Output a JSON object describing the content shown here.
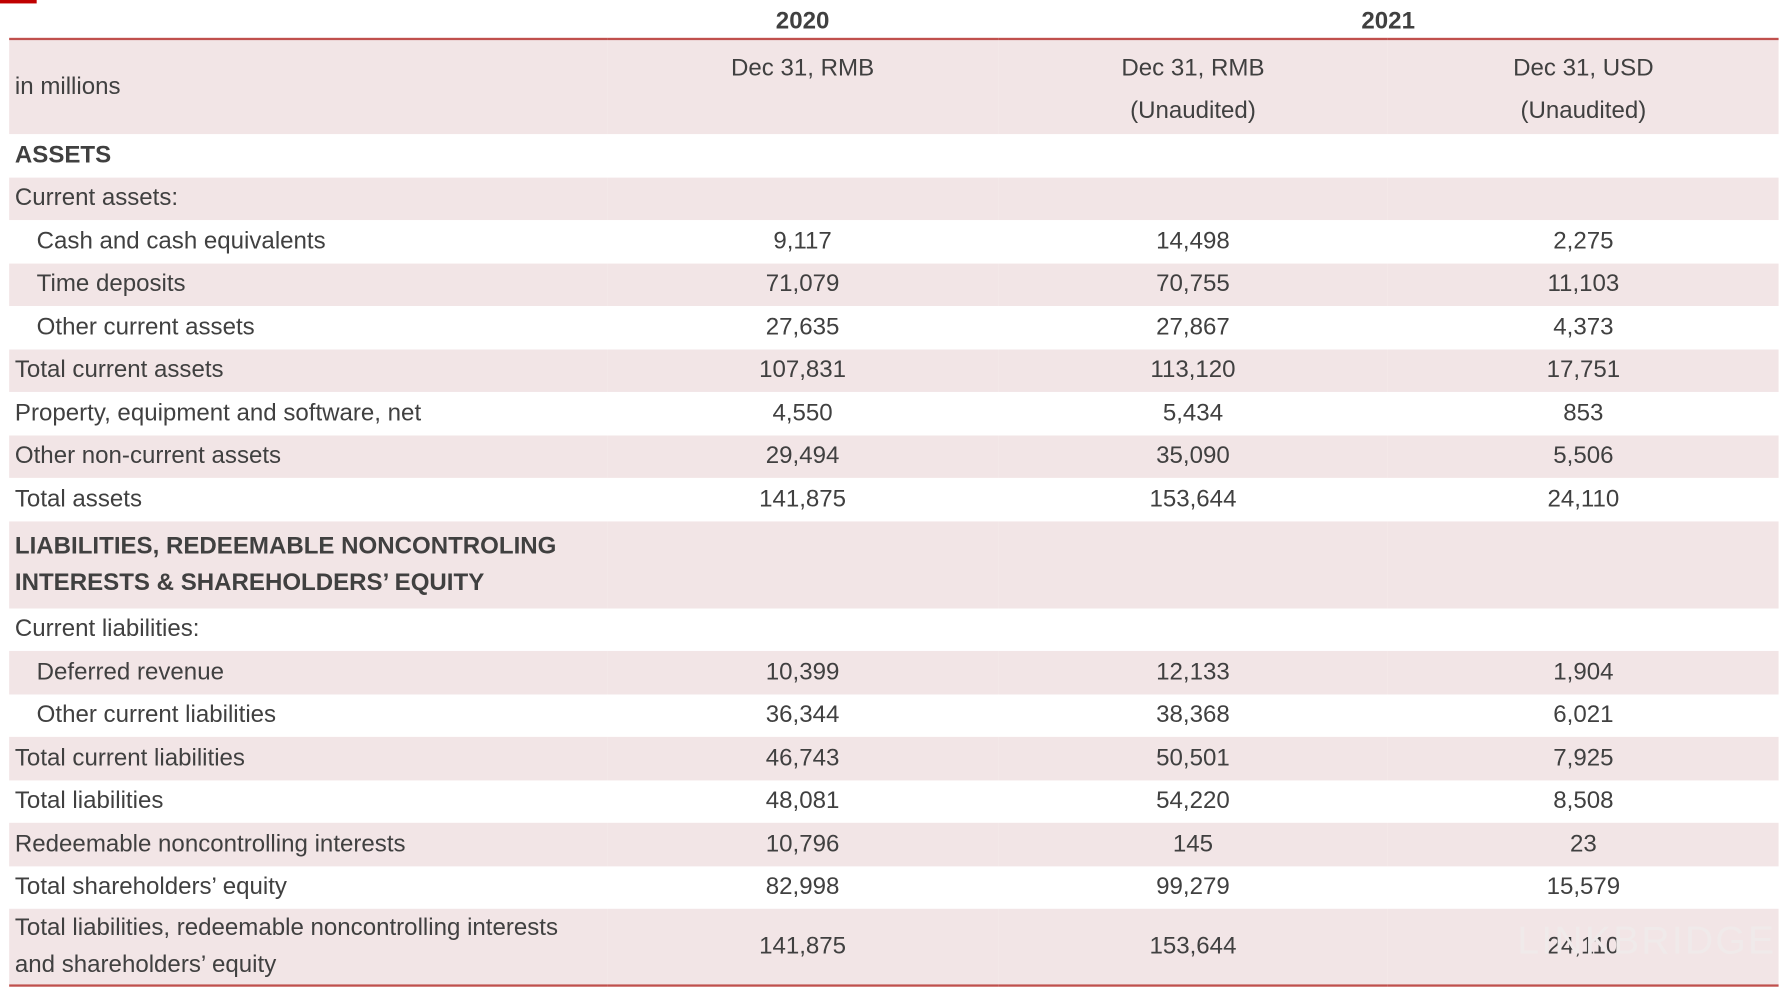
{
  "header": {
    "years": [
      "2020",
      "2021"
    ],
    "unit_label": "in millions",
    "columns": [
      {
        "line1": "Dec 31, RMB"
      },
      {
        "line1": "Dec 31, RMB",
        "line2": "(Unaudited)"
      },
      {
        "line1": "Dec 31, USD",
        "line2": "(Unaudited)"
      }
    ]
  },
  "table": {
    "rows": [
      {
        "label": "ASSETS",
        "bold": true
      },
      {
        "label": "Current assets:"
      },
      {
        "label": "Cash and cash equivalents",
        "indent": true,
        "values": [
          "9,117",
          "14,498",
          "2,275"
        ]
      },
      {
        "label": "Time deposits",
        "indent": true,
        "values": [
          "71,079",
          "70,755",
          "11,103"
        ]
      },
      {
        "label": "Other current assets",
        "indent": true,
        "values": [
          "27,635",
          "27,867",
          "4,373"
        ]
      },
      {
        "label": "Total current assets",
        "values": [
          "107,831",
          "113,120",
          "17,751"
        ]
      },
      {
        "label": "Property, equipment and software, net",
        "values": [
          "4,550",
          "5,434",
          "853"
        ]
      },
      {
        "label": "Other non-current assets",
        "values": [
          "29,494",
          "35,090",
          "5,506"
        ]
      },
      {
        "label": "Total assets",
        "values": [
          "141,875",
          "153,644",
          "24,110"
        ]
      },
      {
        "label": "LIABILITIES, REDEEMABLE NONCONTROLING INTERESTS & SHAREHOLDERS’ EQUITY",
        "bold": true
      },
      {
        "label": "Current liabilities:"
      },
      {
        "label": "Deferred revenue",
        "indent": true,
        "values": [
          "10,399",
          "12,133",
          "1,904"
        ]
      },
      {
        "label": "Other current liabilities",
        "indent": true,
        "values": [
          "36,344",
          "38,368",
          "6,021"
        ]
      },
      {
        "label": "Total current liabilities",
        "values": [
          "46,743",
          "50,501",
          "7,925"
        ]
      },
      {
        "label": "Total liabilities",
        "values": [
          "48,081",
          "54,220",
          "8,508"
        ]
      },
      {
        "label": "Redeemable noncontrolling interests",
        "values": [
          "10,796",
          "145",
          "23"
        ]
      },
      {
        "label": "Total shareholders’ equity",
        "values": [
          "82,998",
          "99,279",
          "15,579"
        ]
      },
      {
        "label": "Total liabilities, redeemable noncontrolling interests and shareholders’ equity",
        "values": [
          "141,875",
          "153,644",
          "24,110"
        ]
      }
    ]
  },
  "watermark": "LINKBRIDGE"
}
